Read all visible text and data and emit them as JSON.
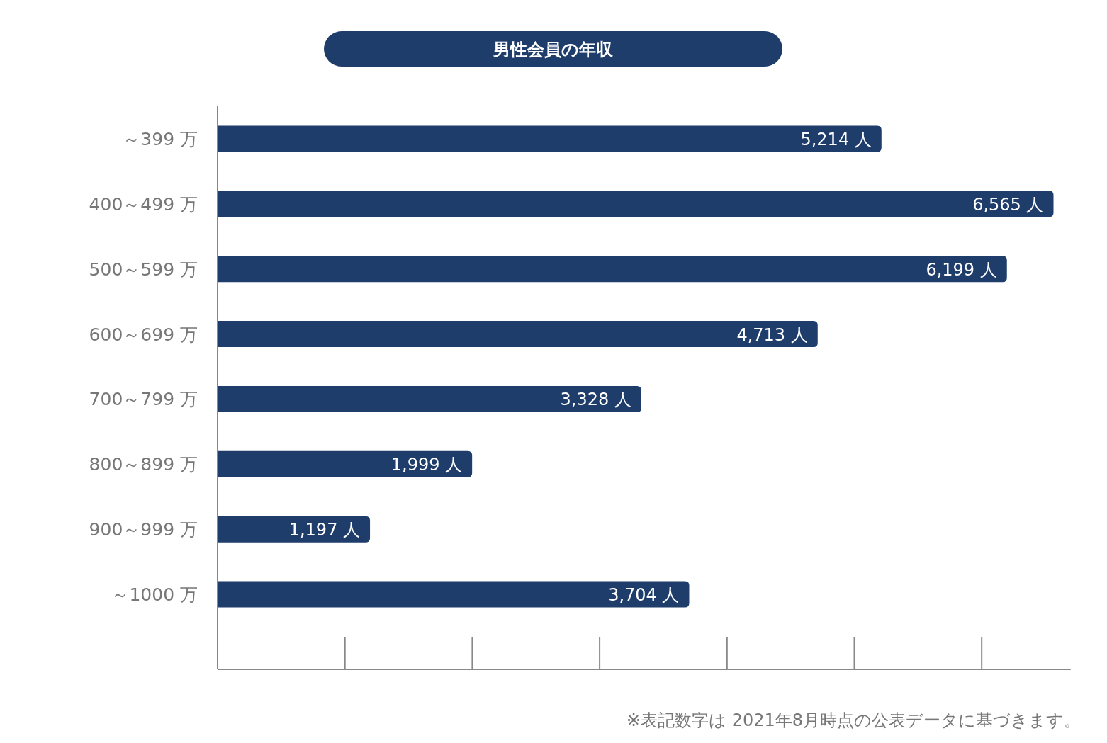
{
  "chart_data": {
    "type": "bar",
    "orientation": "horizontal",
    "title": "男性会員の年収",
    "categories": [
      "～399 万",
      "400～499 万",
      "500～599 万",
      "600～699 万",
      "700～799 万",
      "800～899 万",
      "900～999 万",
      "～1000 万"
    ],
    "values": [
      5214,
      6565,
      6199,
      4713,
      3328,
      1999,
      1197,
      3704
    ],
    "value_labels": [
      "5,214 人",
      "6,565 人",
      "6,199 人",
      "4,713 人",
      "3,328 人",
      "1,999 人",
      "1,197 人",
      "3,704 人"
    ],
    "color": "#1e3d6b",
    "xlim": [
      0,
      6700
    ],
    "annotations": [
      "※表記数字は 2021年8月時点の公表データに基づきます。"
    ]
  }
}
